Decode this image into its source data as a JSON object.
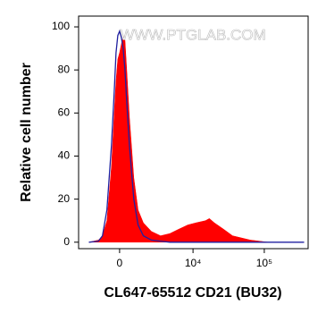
{
  "chart_data": {
    "type": "area",
    "xlabel": "CL647-65512 CD21 (BU32)",
    "ylabel": "Relative cell number",
    "annotation": "WWW.PTGLAB.COM",
    "xscale": "biexponential",
    "x": [
      -2200,
      -1400,
      -1100,
      -800,
      -500,
      -330,
      -220,
      -110,
      0,
      110,
      220,
      330,
      440,
      610,
      900,
      1200,
      1600,
      2300,
      3300,
      4600,
      6200,
      8400,
      11000,
      15000,
      17000,
      20000,
      27000,
      36000,
      64000,
      113000,
      200000,
      360000
    ],
    "series": [
      {
        "color": "#ff0000",
        "fill": true,
        "values": [
          0,
          1,
          3,
          10,
          35,
          60,
          75,
          85,
          88,
          92,
          96,
          94,
          80,
          58,
          30,
          15,
          9,
          5,
          3,
          4,
          6,
          8,
          9,
          10,
          11,
          9,
          6,
          3,
          1,
          0,
          0,
          0
        ]
      },
      {
        "color": "#2020a0",
        "fill": false,
        "values": [
          0,
          0.5,
          3,
          15,
          45,
          70,
          88,
          96,
          98,
          95,
          90,
          80,
          65,
          45,
          20,
          8,
          3,
          1,
          0.5,
          0,
          0,
          0,
          0,
          0,
          0,
          0,
          0,
          0,
          0,
          0,
          0,
          0
        ]
      }
    ],
    "xlim": [
      -3300,
      410000
    ],
    "xticks": [
      0,
      {
        "value": 10000,
        "label": "10⁴"
      },
      {
        "value": 100000,
        "label": "10⁵"
      }
    ],
    "ylim": [
      -3,
      105
    ],
    "yticks": [
      0,
      20,
      40,
      60,
      80,
      100
    ]
  }
}
